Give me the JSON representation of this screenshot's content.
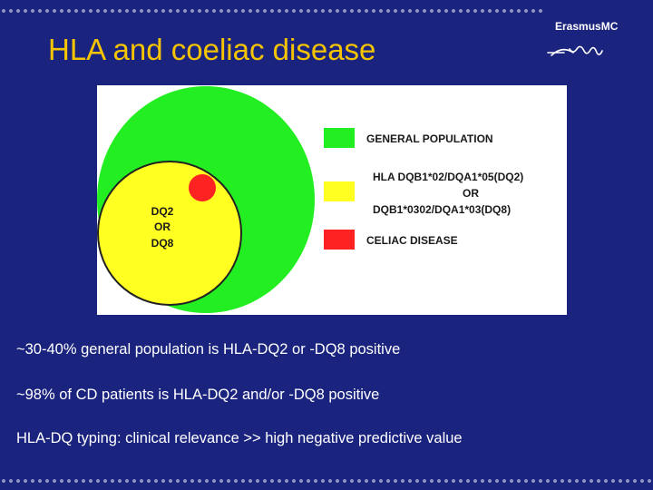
{
  "slide": {
    "title": "HLA and coeliac disease",
    "logo": {
      "brand_text": "ErasmusMC",
      "signature_text": "Erafmus"
    }
  },
  "diagram": {
    "circle_labels": [
      "DQ2",
      "OR",
      "DQ8"
    ],
    "legend": [
      {
        "color": "#22ee22",
        "lines": [
          "GENERAL POPULATION"
        ]
      },
      {
        "color": "#ffff22",
        "lines": [
          "HLA DQB1*02/DQA1*05(DQ2)",
          "OR",
          "DQB1*0302/DQA1*03(DQ8)"
        ]
      },
      {
        "color": "#ff2222",
        "lines": [
          "CELIAC DISEASE"
        ]
      }
    ],
    "colors": {
      "general": "#22ee22",
      "hla": "#ffff22",
      "celiac": "#ff2222",
      "outline": "#222222"
    }
  },
  "bullets": [
    "~30-40% general population is HLA-DQ2 or -DQ8 positive",
    "~98% of CD patients is HLA-DQ2 and/or -DQ8 positive",
    "HLA-DQ typing: clinical relevance >> high negative predictive value"
  ]
}
